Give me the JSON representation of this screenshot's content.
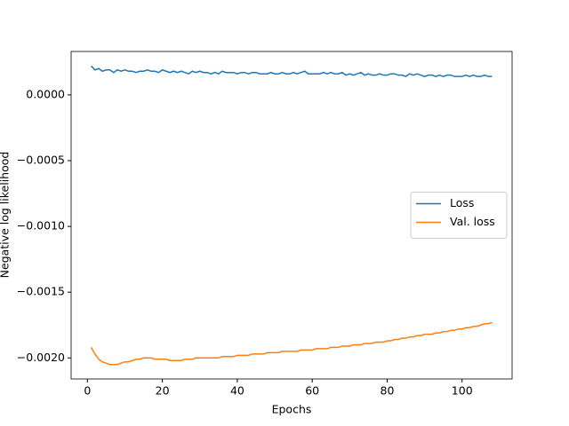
{
  "chart_data": {
    "type": "line",
    "xlabel": "Epochs",
    "ylabel": "Negative log likelihood",
    "x": [
      1,
      2,
      3,
      4,
      5,
      6,
      7,
      8,
      9,
      10,
      11,
      12,
      13,
      14,
      15,
      16,
      17,
      18,
      19,
      20,
      21,
      22,
      23,
      24,
      25,
      26,
      27,
      28,
      29,
      30,
      31,
      32,
      33,
      34,
      35,
      36,
      37,
      38,
      39,
      40,
      41,
      42,
      43,
      44,
      45,
      46,
      47,
      48,
      49,
      50,
      51,
      52,
      53,
      54,
      55,
      56,
      57,
      58,
      59,
      60,
      61,
      62,
      63,
      64,
      65,
      66,
      67,
      68,
      69,
      70,
      71,
      72,
      73,
      74,
      75,
      76,
      77,
      78,
      79,
      80,
      81,
      82,
      83,
      84,
      85,
      86,
      87,
      88,
      89,
      90,
      91,
      92,
      93,
      94,
      95,
      96,
      97,
      98,
      99,
      100,
      101,
      102,
      103,
      104,
      105,
      106,
      107,
      108
    ],
    "series": [
      {
        "name": "Loss",
        "color": "#1f77b4",
        "values": [
          0.00022,
          0.00019,
          0.0002,
          0.00018,
          0.00019,
          0.00019,
          0.00017,
          0.00019,
          0.00018,
          0.00019,
          0.00018,
          0.00018,
          0.00017,
          0.00018,
          0.00018,
          0.00019,
          0.00018,
          0.00018,
          0.00017,
          0.00019,
          0.00018,
          0.00017,
          0.00018,
          0.00017,
          0.00018,
          0.00017,
          0.00016,
          0.00018,
          0.00017,
          0.00018,
          0.00017,
          0.00017,
          0.00016,
          0.00017,
          0.00016,
          0.00018,
          0.00017,
          0.00017,
          0.00017,
          0.00016,
          0.00017,
          0.00017,
          0.00016,
          0.00017,
          0.00017,
          0.00016,
          0.00016,
          0.00016,
          0.00017,
          0.00016,
          0.00016,
          0.00017,
          0.00016,
          0.00016,
          0.00017,
          0.00016,
          0.00017,
          0.00018,
          0.00016,
          0.00016,
          0.00016,
          0.00016,
          0.00017,
          0.00016,
          0.00017,
          0.00016,
          0.00016,
          0.00017,
          0.00015,
          0.00016,
          0.00015,
          0.00016,
          0.00017,
          0.00015,
          0.00016,
          0.00015,
          0.00015,
          0.00016,
          0.00015,
          0.00015,
          0.00016,
          0.00016,
          0.00015,
          0.00015,
          0.00014,
          0.00016,
          0.00015,
          0.00016,
          0.00015,
          0.00014,
          0.00015,
          0.00015,
          0.00014,
          0.00015,
          0.00014,
          0.00015,
          0.00015,
          0.00014,
          0.00014,
          0.00014,
          0.00015,
          0.00014,
          0.00015,
          0.00014,
          0.00014,
          0.00015,
          0.00014,
          0.00014
        ]
      },
      {
        "name": "Val. loss",
        "color": "#ff7f0e",
        "values": [
          -0.00192,
          -0.00197,
          -0.00201,
          -0.00203,
          -0.00204,
          -0.00205,
          -0.00205,
          -0.00205,
          -0.00204,
          -0.00203,
          -0.00203,
          -0.00202,
          -0.00201,
          -0.00201,
          -0.002,
          -0.002,
          -0.002,
          -0.00201,
          -0.00201,
          -0.00201,
          -0.00201,
          -0.00202,
          -0.00202,
          -0.00202,
          -0.00202,
          -0.00201,
          -0.00201,
          -0.00201,
          -0.002,
          -0.002,
          -0.002,
          -0.002,
          -0.002,
          -0.002,
          -0.002,
          -0.00199,
          -0.00199,
          -0.00199,
          -0.00199,
          -0.00198,
          -0.00198,
          -0.00198,
          -0.00198,
          -0.00197,
          -0.00197,
          -0.00197,
          -0.00197,
          -0.00196,
          -0.00196,
          -0.00196,
          -0.00196,
          -0.00195,
          -0.00195,
          -0.00195,
          -0.00195,
          -0.00195,
          -0.00194,
          -0.00194,
          -0.00194,
          -0.00194,
          -0.00193,
          -0.00193,
          -0.00193,
          -0.00193,
          -0.00192,
          -0.00192,
          -0.00192,
          -0.00191,
          -0.00191,
          -0.00191,
          -0.0019,
          -0.0019,
          -0.0019,
          -0.00189,
          -0.00189,
          -0.00189,
          -0.00188,
          -0.00188,
          -0.00188,
          -0.00187,
          -0.00187,
          -0.00186,
          -0.00186,
          -0.00185,
          -0.00185,
          -0.00184,
          -0.00184,
          -0.00183,
          -0.00183,
          -0.00182,
          -0.00182,
          -0.00182,
          -0.00181,
          -0.00181,
          -0.0018,
          -0.0018,
          -0.00179,
          -0.00179,
          -0.00178,
          -0.00178,
          -0.00177,
          -0.00177,
          -0.00176,
          -0.00176,
          -0.00175,
          -0.00174,
          -0.00174,
          -0.00173
        ]
      }
    ],
    "xlim": [
      -4.35,
      113.35
    ],
    "xticks": [
      0,
      20,
      40,
      60,
      80,
      100
    ],
    "ylim": [
      -0.00216,
      0.00033
    ],
    "yticks": [
      {
        "value": 0,
        "label": "0.0000"
      },
      {
        "value": -0.0005,
        "label": "−0.0005"
      },
      {
        "value": -0.001,
        "label": "−0.0010"
      },
      {
        "value": -0.0015,
        "label": "−0.0015"
      },
      {
        "value": -0.002,
        "label": "−0.0020"
      }
    ],
    "legend": "center right",
    "grid": false
  }
}
